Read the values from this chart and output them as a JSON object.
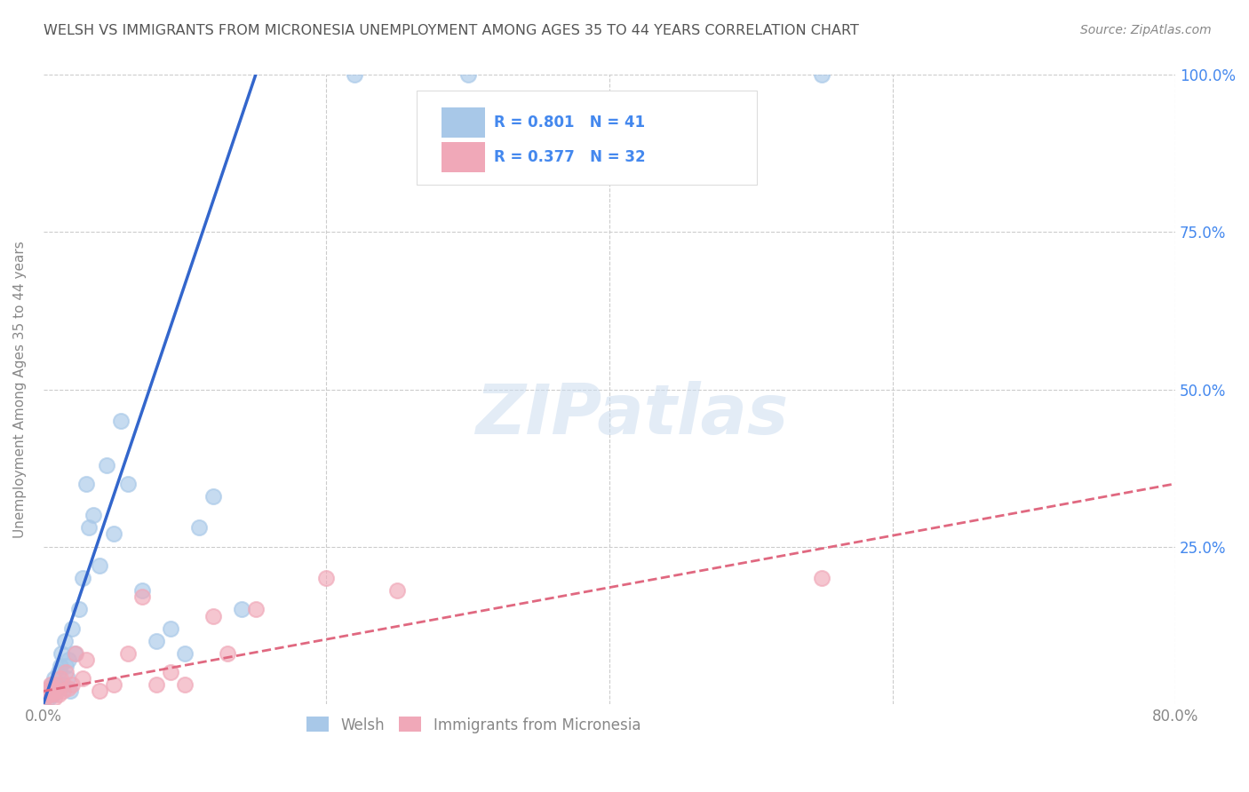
{
  "title": "WELSH VS IMMIGRANTS FROM MICRONESIA UNEMPLOYMENT AMONG AGES 35 TO 44 YEARS CORRELATION CHART",
  "source": "Source: ZipAtlas.com",
  "ylabel": "Unemployment Among Ages 35 to 44 years",
  "welsh_color": "#A8C8E8",
  "micro_color": "#F0A8B8",
  "welsh_line_color": "#3366CC",
  "micro_line_color": "#E06880",
  "background_color": "#FFFFFF",
  "grid_color": "#CCCCCC",
  "legend_text_color": "#4488EE",
  "title_color": "#555555",
  "welsh_x": [
    0.1,
    0.2,
    0.3,
    0.4,
    0.5,
    0.6,
    0.7,
    0.8,
    0.9,
    1.0,
    1.1,
    1.2,
    1.3,
    1.4,
    1.5,
    1.6,
    1.7,
    1.8,
    1.9,
    2.0,
    2.2,
    2.5,
    2.8,
    3.0,
    3.2,
    3.5,
    4.0,
    4.5,
    5.0,
    5.5,
    6.0,
    7.0,
    8.0,
    9.0,
    10.0,
    11.0,
    12.0,
    14.0,
    22.0,
    30.0,
    55.0
  ],
  "welsh_y": [
    1.0,
    1.5,
    2.0,
    1.0,
    2.0,
    3.0,
    1.5,
    4.0,
    2.0,
    3.0,
    5.0,
    6.0,
    8.0,
    3.0,
    10.0,
    6.0,
    4.0,
    7.0,
    2.0,
    12.0,
    8.0,
    15.0,
    20.0,
    35.0,
    28.0,
    30.0,
    22.0,
    38.0,
    27.0,
    45.0,
    35.0,
    18.0,
    10.0,
    12.0,
    8.0,
    28.0,
    33.0,
    15.0,
    100.0,
    100.0,
    100.0
  ],
  "micro_x": [
    0.1,
    0.2,
    0.3,
    0.4,
    0.5,
    0.6,
    0.7,
    0.8,
    0.9,
    1.0,
    1.1,
    1.2,
    1.4,
    1.6,
    1.8,
    2.0,
    2.3,
    2.8,
    3.0,
    4.0,
    5.0,
    6.0,
    7.0,
    8.0,
    9.0,
    10.0,
    12.0,
    13.0,
    15.0,
    20.0,
    25.0,
    55.0
  ],
  "micro_y": [
    1.0,
    2.0,
    1.5,
    2.5,
    3.0,
    1.5,
    2.0,
    1.0,
    3.0,
    2.0,
    1.5,
    4.0,
    2.0,
    5.0,
    2.5,
    3.0,
    8.0,
    4.0,
    7.0,
    2.0,
    3.0,
    8.0,
    17.0,
    3.0,
    5.0,
    3.0,
    14.0,
    8.0,
    15.0,
    20.0,
    18.0,
    20.0
  ],
  "xlim": [
    0,
    80
  ],
  "ylim": [
    0,
    100
  ],
  "welsh_line_x": [
    0,
    15
  ],
  "welsh_line_y": [
    0,
    100
  ],
  "micro_line_x": [
    0,
    80
  ],
  "micro_line_y": [
    2,
    35
  ]
}
